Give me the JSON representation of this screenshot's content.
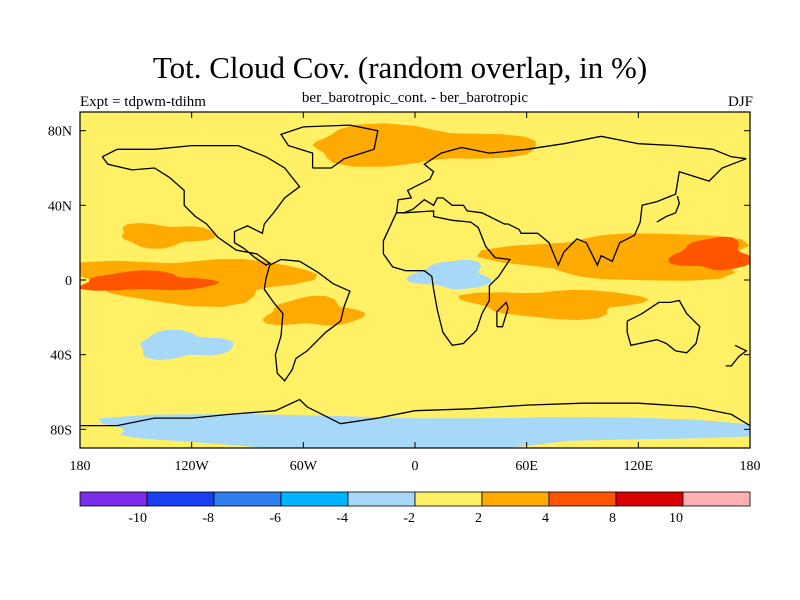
{
  "chart_data": {
    "type": "heatmap",
    "title": "Tot. Cloud Cov. (random overlap, in %)",
    "subtitle": "ber_barotropic_cont. - ber_barotropic",
    "left_label": "Expt = tdpwm-tdihm",
    "right_label": "DJF",
    "x_ticks": [
      "180",
      "120W",
      "60W",
      "0",
      "60E",
      "120E",
      "180"
    ],
    "x_tick_values": [
      -180,
      -120,
      -60,
      0,
      60,
      120,
      180
    ],
    "y_ticks": [
      "80N",
      "40N",
      "0",
      "40S",
      "80S"
    ],
    "y_tick_values": [
      80,
      40,
      0,
      -40,
      -80
    ],
    "xlim": [
      -180,
      180
    ],
    "ylim": [
      -90,
      90
    ],
    "colorbar": {
      "labels": [
        "-10",
        "-8",
        "-6",
        "-4",
        "-2",
        "2",
        "4",
        "8",
        "10"
      ],
      "colors": [
        "#7b2ee8",
        "#1a3ff0",
        "#2e7ff0",
        "#00b4ff",
        "#a8d8f8",
        "#fff066",
        "#ffaa00",
        "#ff5500",
        "#d80000",
        "#ffb0b0"
      ]
    },
    "features": [
      {
        "name": "equatorial-pacific-positive",
        "level": 4,
        "lon": [
          -180,
          -110
        ],
        "lat": [
          -6,
          4
        ]
      },
      {
        "name": "east-pacific-positive-band",
        "level": 3,
        "lon": [
          -180,
          -60
        ],
        "lat": [
          -12,
          12
        ]
      },
      {
        "name": "north-pacific-positive",
        "level": 3,
        "lon": [
          -160,
          -110
        ],
        "lat": [
          18,
          30
        ]
      },
      {
        "name": "south-pacific-negative",
        "level": 1,
        "lon": [
          -150,
          -100
        ],
        "lat": [
          -42,
          -28
        ]
      },
      {
        "name": "south-atlantic-positive",
        "level": 3,
        "lon": [
          -80,
          -30
        ],
        "lat": [
          -25,
          -10
        ]
      },
      {
        "name": "africa-negative",
        "level": 1,
        "lon": [
          0,
          40
        ],
        "lat": [
          -5,
          10
        ]
      },
      {
        "name": "indian-ocean-positive",
        "level": 3,
        "lon": [
          50,
          180
        ],
        "lat": [
          0,
          25
        ]
      },
      {
        "name": "west-pacific-strong-positive",
        "level": 4,
        "lon": [
          140,
          180
        ],
        "lat": [
          5,
          22
        ]
      },
      {
        "name": "indian-ocean-south-positive",
        "level": 3,
        "lon": [
          30,
          120
        ],
        "lat": [
          -20,
          -5
        ]
      },
      {
        "name": "southern-ocean-negative",
        "level": 1,
        "lon": [
          -180,
          180
        ],
        "lat": [
          -90,
          -72
        ]
      },
      {
        "name": "high-north-positive",
        "level": 3,
        "lon": [
          -60,
          60
        ],
        "lat": [
          62,
          82
        ]
      }
    ]
  }
}
